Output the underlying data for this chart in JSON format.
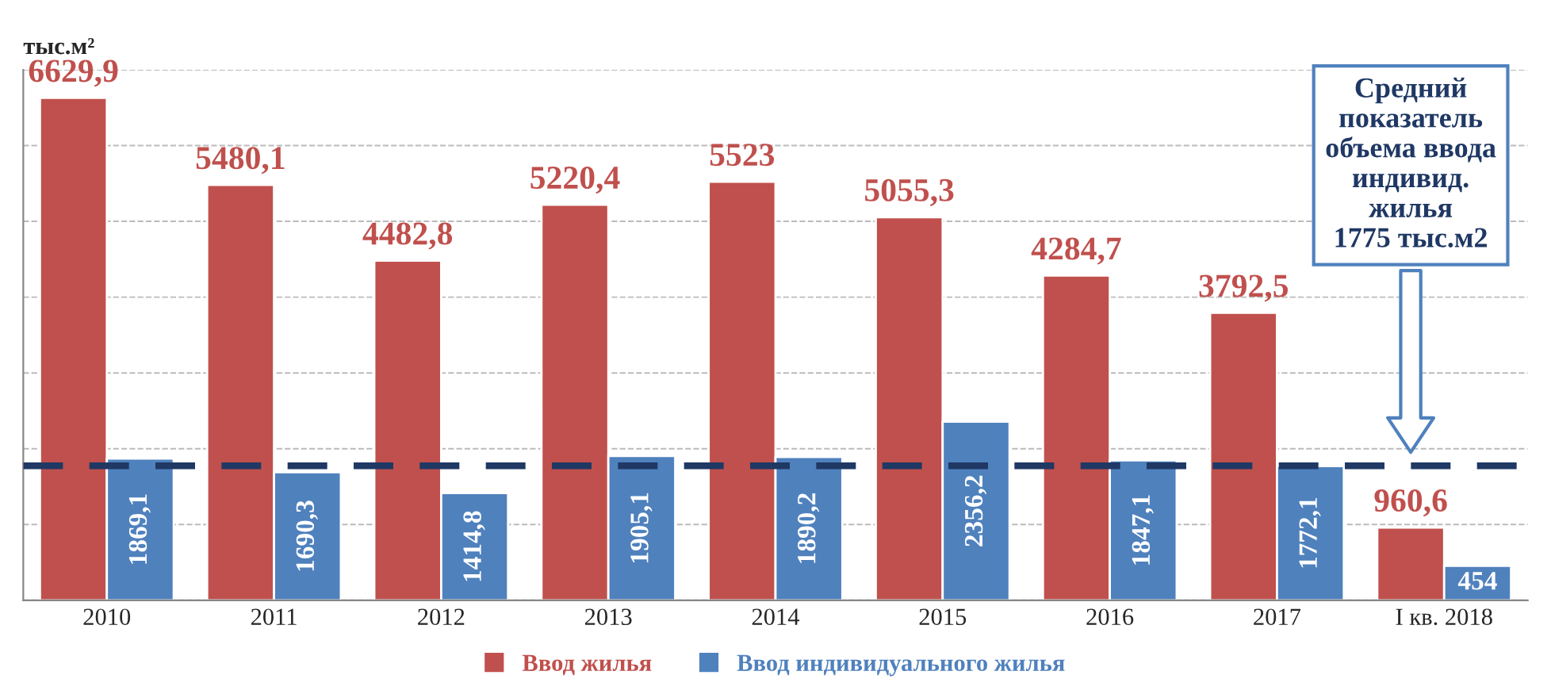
{
  "chart_data": {
    "type": "bar",
    "ylabel": "тыс.м²",
    "categories": [
      "2010",
      "2011",
      "2012",
      "2013",
      "2014",
      "2015",
      "2016",
      "2017",
      "I кв. 2018"
    ],
    "series": [
      {
        "name": "Ввод жилья",
        "color": "#c0504d",
        "values": [
          6629.9,
          5480.1,
          4482.8,
          5220.4,
          5523,
          5055.3,
          4284.7,
          3792.5,
          960.6
        ],
        "value_labels": [
          "6629,9",
          "5480,1",
          "4482,8",
          "5220,4",
          "5523",
          "5055,3",
          "4284,7",
          "3792,5",
          "960,6"
        ]
      },
      {
        "name": "Ввод индивидуального жилья",
        "color": "#4f81bd",
        "values": [
          1869.1,
          1690.3,
          1414.8,
          1905.1,
          1890.2,
          2356.2,
          1847.1,
          1772.1,
          454
        ],
        "value_labels": [
          "1869,1",
          "1690,3",
          "1414,8",
          "1905,1",
          "1890,2",
          "2356,2",
          "1847,1",
          "1772,1",
          "454"
        ]
      }
    ],
    "ylim": [
      0,
      7000
    ],
    "yticks": [
      {
        "value": 0,
        "label": null
      },
      {
        "value": 1000,
        "label": null
      },
      {
        "value": 2000,
        "label": null
      },
      {
        "value": 3000,
        "label": null
      },
      {
        "value": 4000,
        "label": null
      },
      {
        "value": 5000,
        "label": null
      },
      {
        "value": 6000,
        "label": null
      },
      {
        "value": 7000,
        "label": null
      }
    ],
    "grid": "y",
    "legend": "bottom",
    "ref_lines": [
      {
        "axis": "y",
        "value": 1775,
        "label": "Средний\nпоказатель\nобъема ввода\nиндивид.\nжилья\n1775 тыс.м2",
        "color": "#1f3864",
        "line_style": "dashed"
      }
    ]
  }
}
